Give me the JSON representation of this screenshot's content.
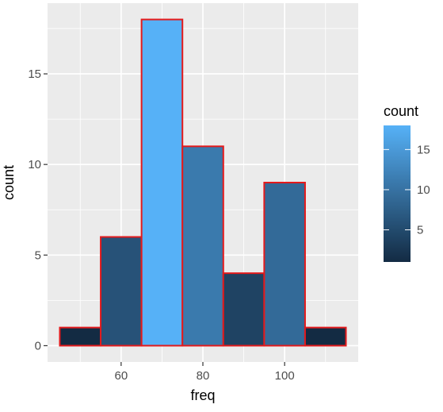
{
  "chart_data": {
    "type": "bar",
    "subtype": "histogram",
    "xlabel": "freq",
    "ylabel": "count",
    "bins": [
      {
        "center": 50,
        "count": 1
      },
      {
        "center": 60,
        "count": 6
      },
      {
        "center": 70,
        "count": 18
      },
      {
        "center": 80,
        "count": 11
      },
      {
        "center": 90,
        "count": 4
      },
      {
        "center": 100,
        "count": 9
      },
      {
        "center": 110,
        "count": 1
      }
    ],
    "binwidth": 10,
    "xlim": [
      42,
      118
    ],
    "ylim": [
      -0.9,
      18.9
    ],
    "x_ticks": [
      60,
      80,
      100
    ],
    "y_ticks": [
      0,
      5,
      10,
      15
    ],
    "grid": true,
    "fill_scale": {
      "title": "count",
      "low_color": "#132B43",
      "high_color": "#56B1F7",
      "range": [
        1,
        18
      ],
      "breaks": [
        5,
        10,
        15
      ]
    },
    "bar_outline_color": "#e31a1c",
    "panel_background": "#ebebeb",
    "gridline_color": "#ffffff",
    "legend_position": "right"
  }
}
